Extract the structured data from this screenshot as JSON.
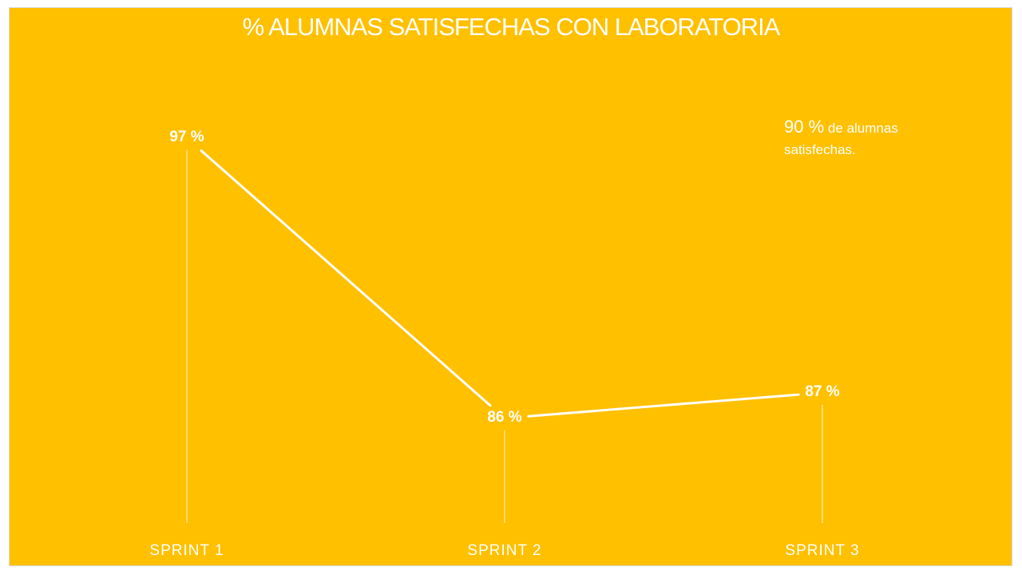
{
  "chart_data": {
    "type": "line",
    "title": "% ALUMNAS SATISFECHAS CON LABORATORIA",
    "categories": [
      "SPRINT  1",
      "SPRINT  2",
      "SPRINT  3"
    ],
    "values": [
      97,
      86,
      87
    ],
    "data_labels": [
      "97 %",
      "86 %",
      "87 %"
    ],
    "ylim": [
      60,
      100
    ],
    "grid": false,
    "legend": "none",
    "annotation": {
      "value": "90 %",
      "text": " de alumnas satisfechas."
    },
    "colors": {
      "background": "#FFC000",
      "line": "#FFFFFF"
    }
  }
}
